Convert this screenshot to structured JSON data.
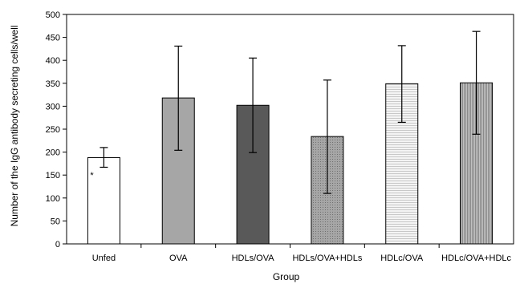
{
  "chart_data": {
    "type": "bar",
    "title": "",
    "xlabel": "Group",
    "ylabel": "Number of the IgG antibody secreting cells/well",
    "ylim": [
      0,
      500
    ],
    "yticks": [
      0,
      50,
      100,
      150,
      200,
      250,
      300,
      350,
      400,
      450,
      500
    ],
    "ytick_labels": [
      "0",
      "50",
      "100",
      "150",
      "200",
      "250",
      "300",
      "350",
      "400",
      "450",
      "500"
    ],
    "categories": [
      "Unfed",
      "OVA",
      "HDLs/OVA",
      "HDLs/OVA+HDLs",
      "HDLc/OVA",
      "HDLc/OVA+HDLc"
    ],
    "values": [
      188,
      318,
      302,
      234,
      349,
      351
    ],
    "error_low": [
      167,
      204,
      199,
      110,
      265,
      239
    ],
    "error_high": [
      210,
      431,
      405,
      357,
      432,
      463
    ],
    "bar_styles": [
      {
        "fill": "#ffffff",
        "pattern": "none"
      },
      {
        "fill": "#a6a6a6",
        "pattern": "none"
      },
      {
        "fill": "#595959",
        "pattern": "none"
      },
      {
        "fill": "#a6a6a6",
        "pattern": "dots"
      },
      {
        "fill": "#ececec",
        "pattern": "horizontal-lines"
      },
      {
        "fill": "#a9a9a9",
        "pattern": "vertical-lines"
      }
    ],
    "annotations": [
      {
        "text": "*",
        "category": "Unfed",
        "value": 150
      }
    ],
    "grid": false,
    "legend": "none"
  }
}
